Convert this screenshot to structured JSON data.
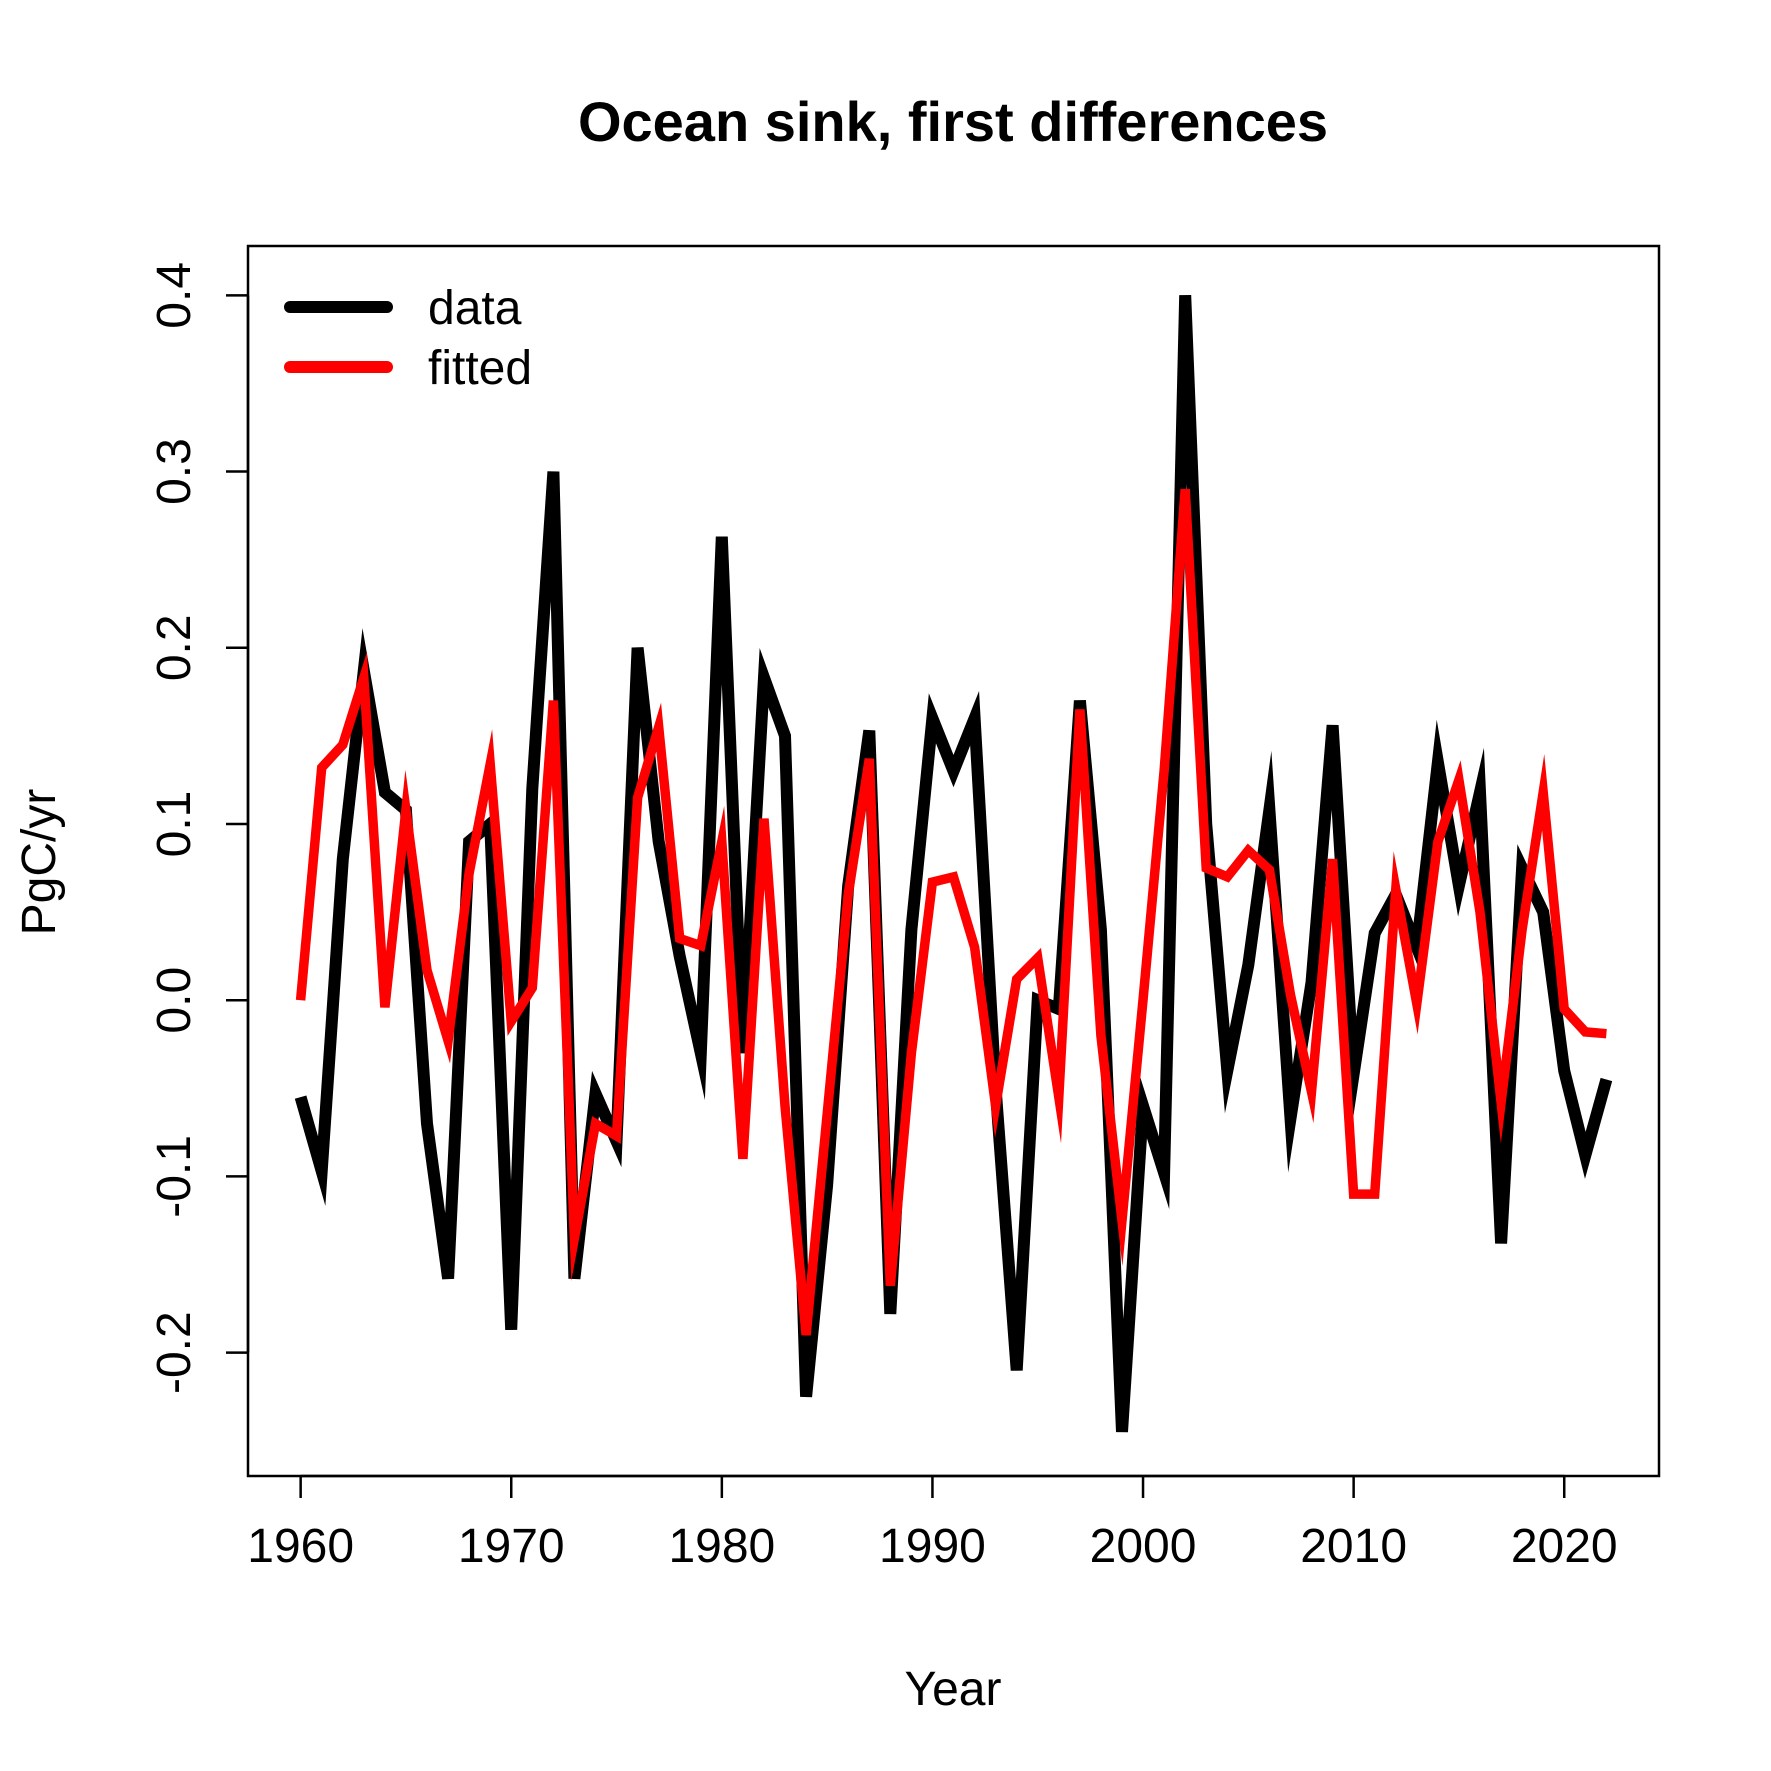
{
  "chart_data": {
    "type": "line",
    "title": "Ocean sink, first differences",
    "xlabel": "Year",
    "ylabel": "PgC/yr",
    "xlim": [
      1957.5,
      2024.5
    ],
    "ylim": [
      -0.27,
      0.428
    ],
    "x_ticks": [
      1960,
      1970,
      1980,
      1990,
      2000,
      2010,
      2020
    ],
    "y_ticks": [
      -0.2,
      -0.1,
      0.0,
      0.1,
      0.2,
      0.3,
      0.4
    ],
    "y_tick_labels": [
      "-0.2",
      "-0.1",
      "0.0",
      "0.1",
      "0.2",
      "0.3",
      "0.4"
    ],
    "legend_position": "top-left",
    "x": [
      1960,
      1961,
      1962,
      1963,
      1964,
      1965,
      1966,
      1967,
      1968,
      1969,
      1970,
      1971,
      1972,
      1973,
      1974,
      1975,
      1976,
      1977,
      1978,
      1979,
      1980,
      1981,
      1982,
      1983,
      1984,
      1985,
      1986,
      1987,
      1988,
      1989,
      1990,
      1991,
      1992,
      1993,
      1994,
      1995,
      1996,
      1997,
      1998,
      1999,
      2000,
      2001,
      2002,
      2003,
      2004,
      2005,
      2006,
      2007,
      2008,
      2009,
      2010,
      2011,
      2012,
      2013,
      2014,
      2015,
      2016,
      2017,
      2018,
      2019,
      2020,
      2021,
      2022
    ],
    "series": [
      {
        "name": "data",
        "color": "#000000",
        "values": [
          -0.055,
          -0.097,
          0.08,
          0.187,
          0.118,
          0.108,
          -0.07,
          -0.158,
          0.09,
          0.1,
          -0.187,
          0.12,
          0.3,
          -0.158,
          -0.053,
          -0.08,
          0.2,
          0.09,
          0.025,
          -0.03,
          0.263,
          -0.03,
          0.183,
          0.15,
          -0.225,
          -0.105,
          0.065,
          0.153,
          -0.178,
          0.04,
          0.16,
          0.13,
          0.16,
          -0.05,
          -0.21,
          0.0,
          -0.005,
          0.17,
          0.04,
          -0.245,
          -0.06,
          -0.098,
          0.4,
          0.1,
          -0.04,
          0.02,
          0.108,
          -0.067,
          0.01,
          0.156,
          -0.042,
          0.038,
          0.06,
          0.03,
          0.135,
          0.065,
          0.118,
          -0.138,
          0.075,
          0.05,
          -0.04,
          -0.088,
          -0.045
        ]
      },
      {
        "name": "fitted",
        "color": "#ff0000",
        "values": [
          0.0,
          0.132,
          0.145,
          0.183,
          -0.004,
          0.108,
          0.017,
          -0.023,
          0.072,
          0.134,
          -0.012,
          0.007,
          0.17,
          -0.135,
          -0.07,
          -0.077,
          0.115,
          0.155,
          0.035,
          0.031,
          0.09,
          -0.09,
          0.103,
          -0.06,
          -0.19,
          -0.065,
          0.06,
          0.137,
          -0.162,
          -0.03,
          0.067,
          0.07,
          0.03,
          -0.06,
          0.012,
          0.024,
          -0.055,
          0.165,
          -0.02,
          -0.125,
          0.0,
          0.13,
          0.29,
          0.075,
          0.07,
          0.085,
          0.074,
          0.003,
          -0.052,
          0.08,
          -0.11,
          -0.11,
          0.063,
          -0.002,
          0.09,
          0.125,
          0.05,
          -0.058,
          0.04,
          0.118,
          -0.005,
          -0.018,
          -0.019
        ]
      }
    ]
  }
}
